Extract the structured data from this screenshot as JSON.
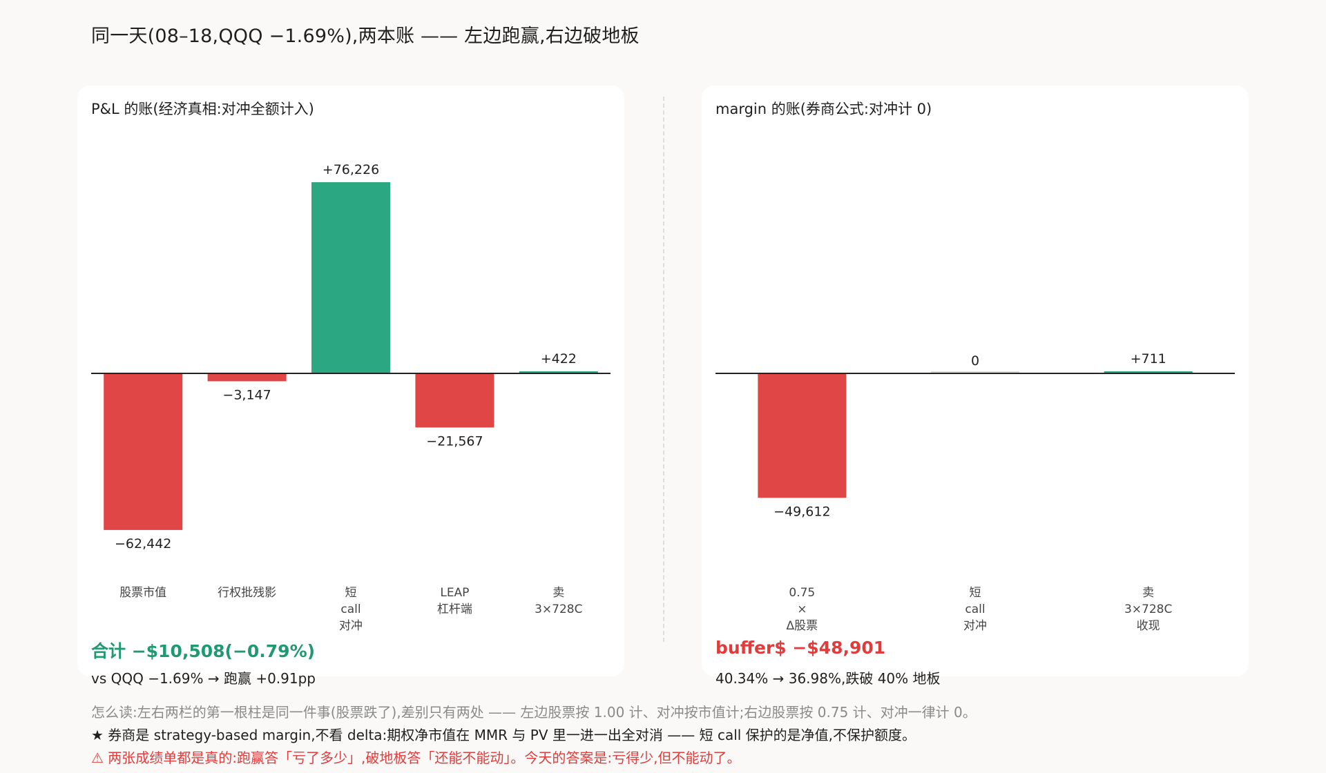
{
  "title": "同一天(08–18,QQQ −1.69%),两本账 —— 左边跑赢,右边破地板",
  "colors": {
    "positive": "#2ba882",
    "negative": "#e04646",
    "neutral": "#d9d9d0",
    "total_positive_text": "#1f9a70",
    "total_negative_text": "#e03c3c"
  },
  "left": {
    "panel_title": "P&L 的账(经济真相:对冲全额计入)",
    "total": "合计 −$10,508(−0.79%)",
    "sub": "vs QQQ −1.69% → 跑赢 +0.91pp"
  },
  "right": {
    "panel_title": "margin 的账(券商公式:对冲计 0)",
    "total": "buffer$ −$48,901",
    "sub": "40.34% → 36.98%,跌破 40% 地板"
  },
  "notes": {
    "line1": "怎么读:左右两栏的第一根柱是同一件事(股票跌了),差别只有两处 —— 左边股票按 1.00 计、对冲按市值计;右边股票按 0.75 计、对冲一律计 0。",
    "line2": "★ 券商是 strategy-based margin,不看 delta:期权净市值在 MMR 与 PV 里一进一出全对消 —— 短 call 保护的是净值,不保护额度。",
    "line3": "⚠ 两张成绩单都是真的:跑赢答「亏了多少」,破地板答「还能不能动」。今天的答案是:亏得少,但不能动了。"
  },
  "chart_data": [
    {
      "type": "bar",
      "title": "P&L 的账(经济真相:对冲全额计入)",
      "categories": [
        [
          "股票市值"
        ],
        [
          "行权批残影"
        ],
        [
          "短",
          "call",
          "对冲"
        ],
        [
          "LEAP",
          "杠杆端"
        ],
        [
          "卖",
          "3×728C"
        ]
      ],
      "values": [
        -62442,
        -3147,
        76226,
        -21567,
        422
      ],
      "labels": [
        "−62,442",
        "−3,147",
        "+76,226",
        "−21,567",
        "+422"
      ],
      "ylim": [
        -76226,
        76226
      ]
    },
    {
      "type": "bar",
      "title": "margin 的账(券商公式:对冲计 0)",
      "categories": [
        [
          "0.75",
          "×",
          "Δ股票"
        ],
        [
          "短",
          "call",
          "对冲"
        ],
        [
          "卖",
          "3×728C",
          "收现"
        ]
      ],
      "values": [
        -49612,
        0,
        711
      ],
      "labels": [
        "−49,612",
        "0",
        "+711"
      ],
      "ylim": [
        -76226,
        76226
      ]
    }
  ]
}
